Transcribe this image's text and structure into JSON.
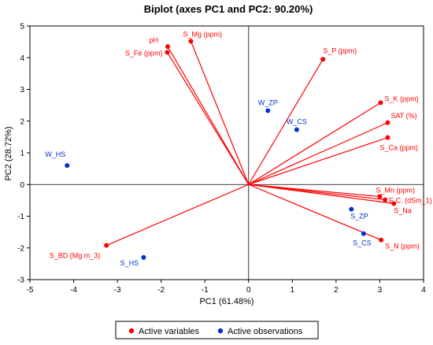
{
  "chart_data": {
    "type": "scatter",
    "title": "Biplot (axes PC1 and PC2: 90.20%)",
    "xlabel": "PC1 (61.48%)",
    "ylabel": "PC2 (28.72%)",
    "xlim": [
      -5,
      4
    ],
    "ylim": [
      -3,
      5
    ],
    "x_ticks": [
      "-5",
      "-4",
      "-3",
      "-2",
      "-1",
      "0",
      "1",
      "2",
      "3",
      "4"
    ],
    "y_ticks": [
      "-3",
      "-2",
      "-1",
      "0",
      "1",
      "2",
      "3",
      "4",
      "5"
    ],
    "grid": false,
    "legend_position": "bottom",
    "series": [
      {
        "name": "Active variables",
        "color": "#ff0000",
        "points": [
          {
            "label": "pH",
            "x": -1.85,
            "y": 4.35
          },
          {
            "label": "S_Mg (ppm)",
            "x": -1.32,
            "y": 4.52
          },
          {
            "label": "S_Fe (ppm)",
            "x": -1.86,
            "y": 4.17
          },
          {
            "label": "S_P (ppm)",
            "x": 1.7,
            "y": 3.95
          },
          {
            "label": "S_K (ppm)",
            "x": 3.02,
            "y": 2.58
          },
          {
            "label": "SAT (%)",
            "x": 3.18,
            "y": 1.95
          },
          {
            "label": "S_Ca (ppm)",
            "x": 3.18,
            "y": 1.48
          },
          {
            "label": "S_Mn (ppm)",
            "x": 3.0,
            "y": -0.38
          },
          {
            "label": "E.C. (dSm_1)",
            "x": 3.12,
            "y": -0.48
          },
          {
            "label": "S_Na",
            "x": 3.32,
            "y": -0.6
          },
          {
            "label": "S_N (ppm)",
            "x": 3.03,
            "y": -1.75
          },
          {
            "label": "S_BD (Mg m_3)",
            "x": -3.25,
            "y": -1.92
          }
        ]
      },
      {
        "name": "Active observations",
        "color": "#0033cc",
        "points": [
          {
            "label": "W_ZP",
            "x": 0.44,
            "y": 2.33
          },
          {
            "label": "W_CS",
            "x": 1.1,
            "y": 1.73
          },
          {
            "label": "W_HS",
            "x": -4.15,
            "y": 0.6
          },
          {
            "label": "S_ZP",
            "x": 2.35,
            "y": -0.78
          },
          {
            "label": "S_CS",
            "x": 2.63,
            "y": -1.55
          },
          {
            "label": "S_HS",
            "x": -2.4,
            "y": -2.3
          }
        ]
      }
    ]
  }
}
